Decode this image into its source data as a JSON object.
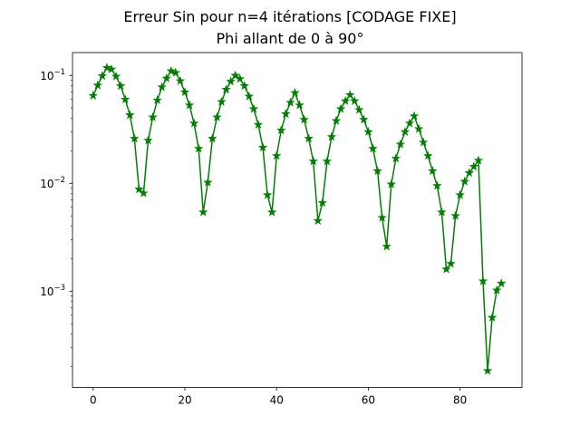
{
  "chart_data": {
    "type": "line",
    "title": "Erreur Sin pour n=4 itérations [CODAGE FIXE]",
    "subtitle": "Phi allant de 0 à 90°",
    "xlabel": "",
    "ylabel": "",
    "xlim": [
      -4.5,
      93.5
    ],
    "ylim": [
      0.000128,
      0.163
    ],
    "yscale": "log",
    "grid": false,
    "legend": "none",
    "x_ticks": [
      {
        "value": 0,
        "label": "0"
      },
      {
        "value": 20,
        "label": "20"
      },
      {
        "value": 40,
        "label": "40"
      },
      {
        "value": 60,
        "label": "60"
      },
      {
        "value": 80,
        "label": "80"
      }
    ],
    "y_ticks": [
      {
        "value": 0.001,
        "base": "10",
        "exp": "−3"
      },
      {
        "value": 0.01,
        "base": "10",
        "exp": "−2"
      },
      {
        "value": 0.1,
        "base": "10",
        "exp": "−1"
      }
    ],
    "series": [
      {
        "color": "#008000",
        "marker": "star",
        "x": [
          0,
          1,
          2,
          3,
          4,
          5,
          6,
          7,
          8,
          9,
          10,
          11,
          12,
          13,
          14,
          15,
          16,
          17,
          18,
          19,
          20,
          21,
          22,
          23,
          24,
          25,
          26,
          27,
          28,
          29,
          30,
          31,
          32,
          33,
          34,
          35,
          36,
          37,
          38,
          39,
          40,
          41,
          42,
          43,
          44,
          45,
          46,
          47,
          48,
          49,
          50,
          51,
          52,
          53,
          54,
          55,
          56,
          57,
          58,
          59,
          60,
          61,
          62,
          63,
          64,
          65,
          66,
          67,
          68,
          69,
          70,
          71,
          72,
          73,
          74,
          75,
          76,
          77,
          78,
          79,
          80,
          81,
          82,
          83,
          84,
          85,
          86,
          87,
          88,
          89
        ],
        "y": [
          0.065,
          0.081,
          0.099,
          0.118,
          0.114,
          0.098,
          0.08,
          0.06,
          0.043,
          0.026,
          0.0088,
          0.0081,
          0.025,
          0.041,
          0.059,
          0.078,
          0.094,
          0.11,
          0.106,
          0.089,
          0.07,
          0.053,
          0.036,
          0.021,
          0.0054,
          0.0102,
          0.026,
          0.041,
          0.057,
          0.074,
          0.088,
          0.1,
          0.093,
          0.08,
          0.064,
          0.049,
          0.035,
          0.0215,
          0.0078,
          0.0054,
          0.018,
          0.031,
          0.044,
          0.056,
          0.069,
          0.053,
          0.039,
          0.026,
          0.016,
          0.0045,
          0.0066,
          0.016,
          0.027,
          0.038,
          0.049,
          0.058,
          0.066,
          0.058,
          0.048,
          0.039,
          0.03,
          0.021,
          0.013,
          0.0048,
          0.0026,
          0.0098,
          0.017,
          0.023,
          0.03,
          0.036,
          0.042,
          0.032,
          0.024,
          0.018,
          0.013,
          0.0095,
          0.0054,
          0.0016,
          0.0018,
          0.005,
          0.0078,
          0.0104,
          0.0125,
          0.0143,
          0.0163,
          0.00124,
          0.000183,
          0.00057,
          0.00102,
          0.00118
        ]
      }
    ]
  }
}
